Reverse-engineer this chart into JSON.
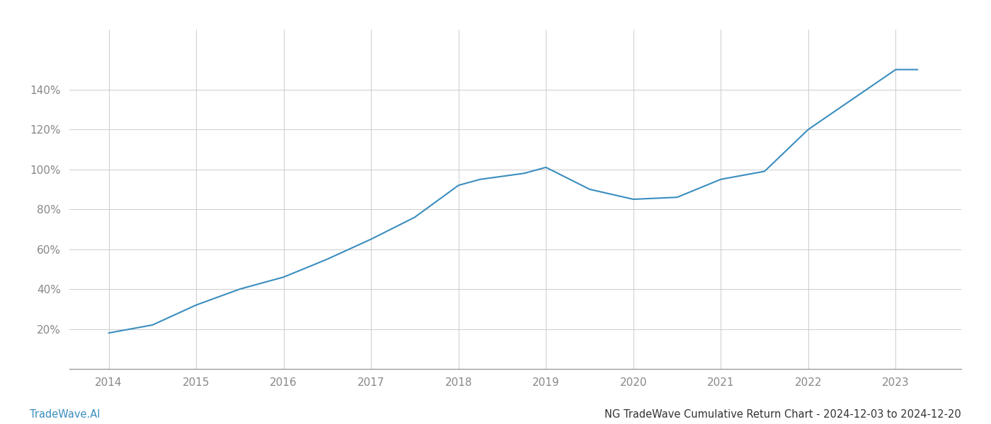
{
  "x": [
    2014,
    2014.5,
    2015,
    2015.5,
    2016,
    2016.5,
    2017,
    2017.5,
    2018,
    2018.25,
    2018.75,
    2019,
    2019.5,
    2020,
    2020.5,
    2021,
    2021.5,
    2022,
    2022.5,
    2023,
    2023.25
  ],
  "y": [
    18,
    22,
    32,
    40,
    46,
    55,
    65,
    76,
    92,
    95,
    98,
    101,
    90,
    85,
    86,
    95,
    99,
    120,
    135,
    150,
    150
  ],
  "line_color": "#3a8dbf",
  "line_width": 1.5,
  "background_color": "#ffffff",
  "grid_color": "#cccccc",
  "title": "NG TradeWave Cumulative Return Chart - 2024-12-03 to 2024-12-20",
  "title_fontsize": 10.5,
  "title_color": "#333333",
  "watermark": "TradeWave.AI",
  "watermark_color": "#3a8dbf",
  "watermark_fontsize": 10.5,
  "xlabel": "",
  "ylabel": "",
  "xlim": [
    2013.55,
    2023.75
  ],
  "ylim": [
    0,
    170
  ],
  "yticks": [
    20,
    40,
    60,
    80,
    100,
    120,
    140
  ],
  "xticks": [
    2014,
    2015,
    2016,
    2017,
    2018,
    2019,
    2020,
    2021,
    2022,
    2023
  ],
  "tick_color": "#888888",
  "tick_fontsize": 11,
  "spine_color": "#888888"
}
